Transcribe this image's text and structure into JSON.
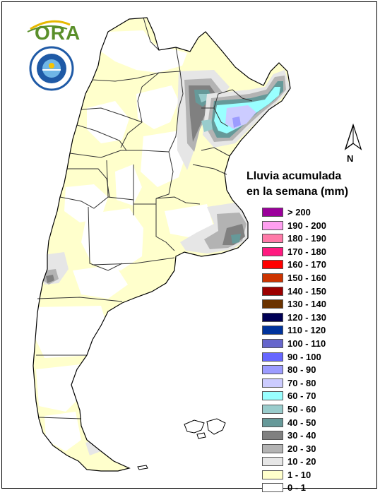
{
  "logo": {
    "text": "ORA"
  },
  "seal": {
    "text": "SERVICIO METEOROLOGICO NACIONAL"
  },
  "north": {
    "label": "N",
    "icon": "north-arrow-icon"
  },
  "legend": {
    "title_line1": "Lluvia acumulada",
    "title_line2": "en la semana (mm)",
    "items": [
      {
        "label": "> 200",
        "color": "#9b009b"
      },
      {
        "label": "190 - 200",
        "color": "#ff9ff0"
      },
      {
        "label": "180 - 190",
        "color": "#ff7aa8"
      },
      {
        "label": "170 - 180",
        "color": "#ff1a80"
      },
      {
        "label": "160 - 170",
        "color": "#ff0000"
      },
      {
        "label": "150 - 160",
        "color": "#cc3300"
      },
      {
        "label": "140 - 150",
        "color": "#9c0000"
      },
      {
        "label": "130 - 140",
        "color": "#6b3300"
      },
      {
        "label": "120 - 130",
        "color": "#000055"
      },
      {
        "label": "110 - 120",
        "color": "#00339c"
      },
      {
        "label": "100 - 110",
        "color": "#6666cc"
      },
      {
        "label": "90 - 100",
        "color": "#6666ff"
      },
      {
        "label": "80 - 90",
        "color": "#9c9cff"
      },
      {
        "label": "70 - 80",
        "color": "#ccccff"
      },
      {
        "label": "60 - 70",
        "color": "#99ffff"
      },
      {
        "label": "50 - 60",
        "color": "#99cccc"
      },
      {
        "label": "40 - 50",
        "color": "#669999"
      },
      {
        "label": "30 - 40",
        "color": "#808080"
      },
      {
        "label": "20 - 30",
        "color": "#b3b3b3"
      },
      {
        "label": "10 - 20",
        "color": "#e6e6e6"
      },
      {
        "label": "1 - 10",
        "color": "#ffffcc"
      },
      {
        "label": "0 - 1",
        "color": "#ffffff"
      }
    ]
  }
}
